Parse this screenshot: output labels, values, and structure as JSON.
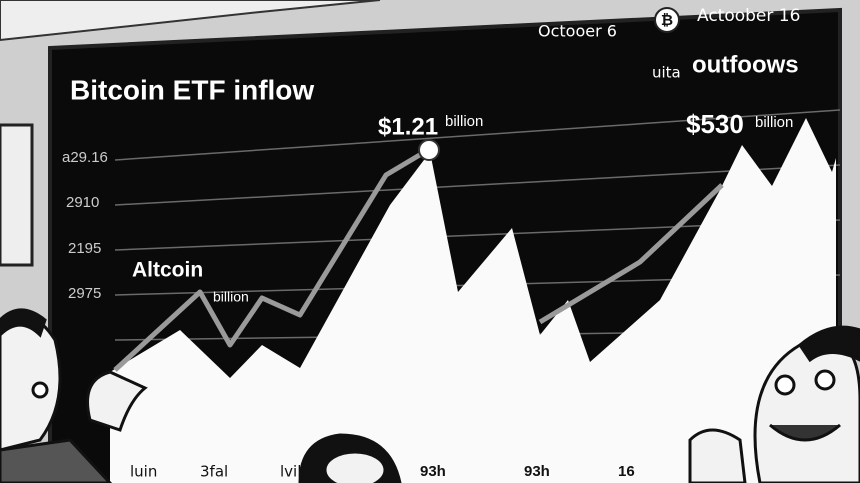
{
  "header": {
    "date_left": "Octooer 6",
    "icon": "₿",
    "date_right": "Actoober 16"
  },
  "title": "Bitcoin ETF inflow",
  "legend_right": {
    "prefix": "uita",
    "label": "outfoows"
  },
  "annotations": [
    {
      "value": "$1.21",
      "unit": "billion"
    },
    {
      "value": "$530",
      "unit": "billion"
    },
    {
      "label": "Altcoin",
      "unit": "billion"
    }
  ],
  "y_labels": [
    "a29.16",
    "2910",
    "2195",
    "2975"
  ],
  "x_labels": [
    "luin",
    "3fal",
    "lvil",
    "93h",
    "93h",
    "16"
  ]
}
